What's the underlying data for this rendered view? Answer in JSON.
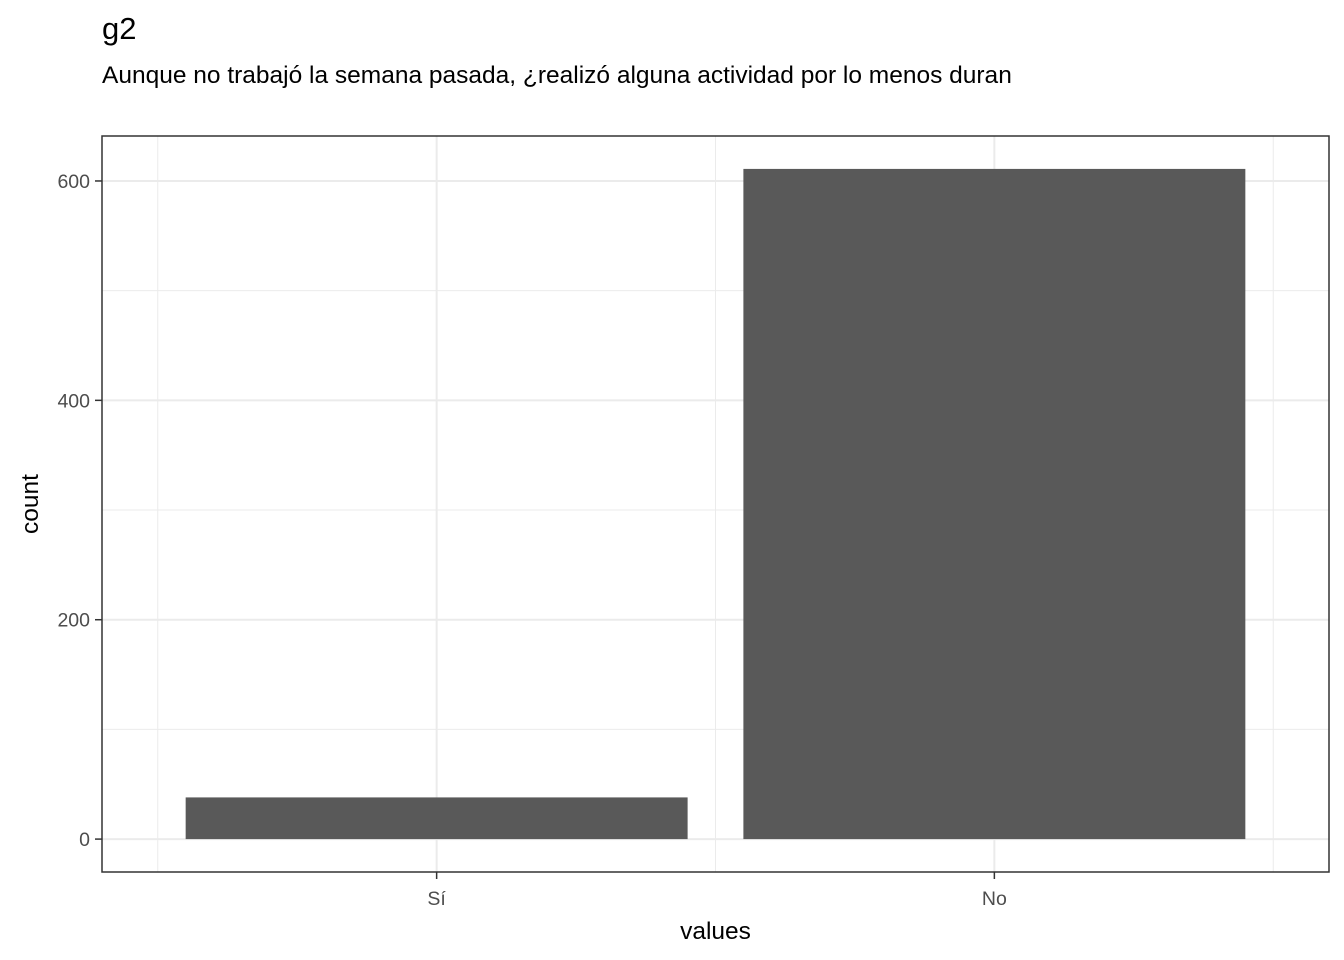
{
  "chart_data": {
    "type": "bar",
    "title": "g2",
    "subtitle": "Aunque no trabajó la semana pasada, ¿realizó alguna actividad por lo menos duran",
    "xlabel": "values",
    "ylabel": "count",
    "categories": [
      "Sí",
      "No"
    ],
    "values": [
      38,
      611
    ],
    "ylim": [
      -30,
      641
    ],
    "yticks": [
      0,
      200,
      400,
      600
    ],
    "grid": true,
    "bar_color": "#595959",
    "grid_color": "#ebebeb",
    "panel_border_color": "#333333"
  }
}
